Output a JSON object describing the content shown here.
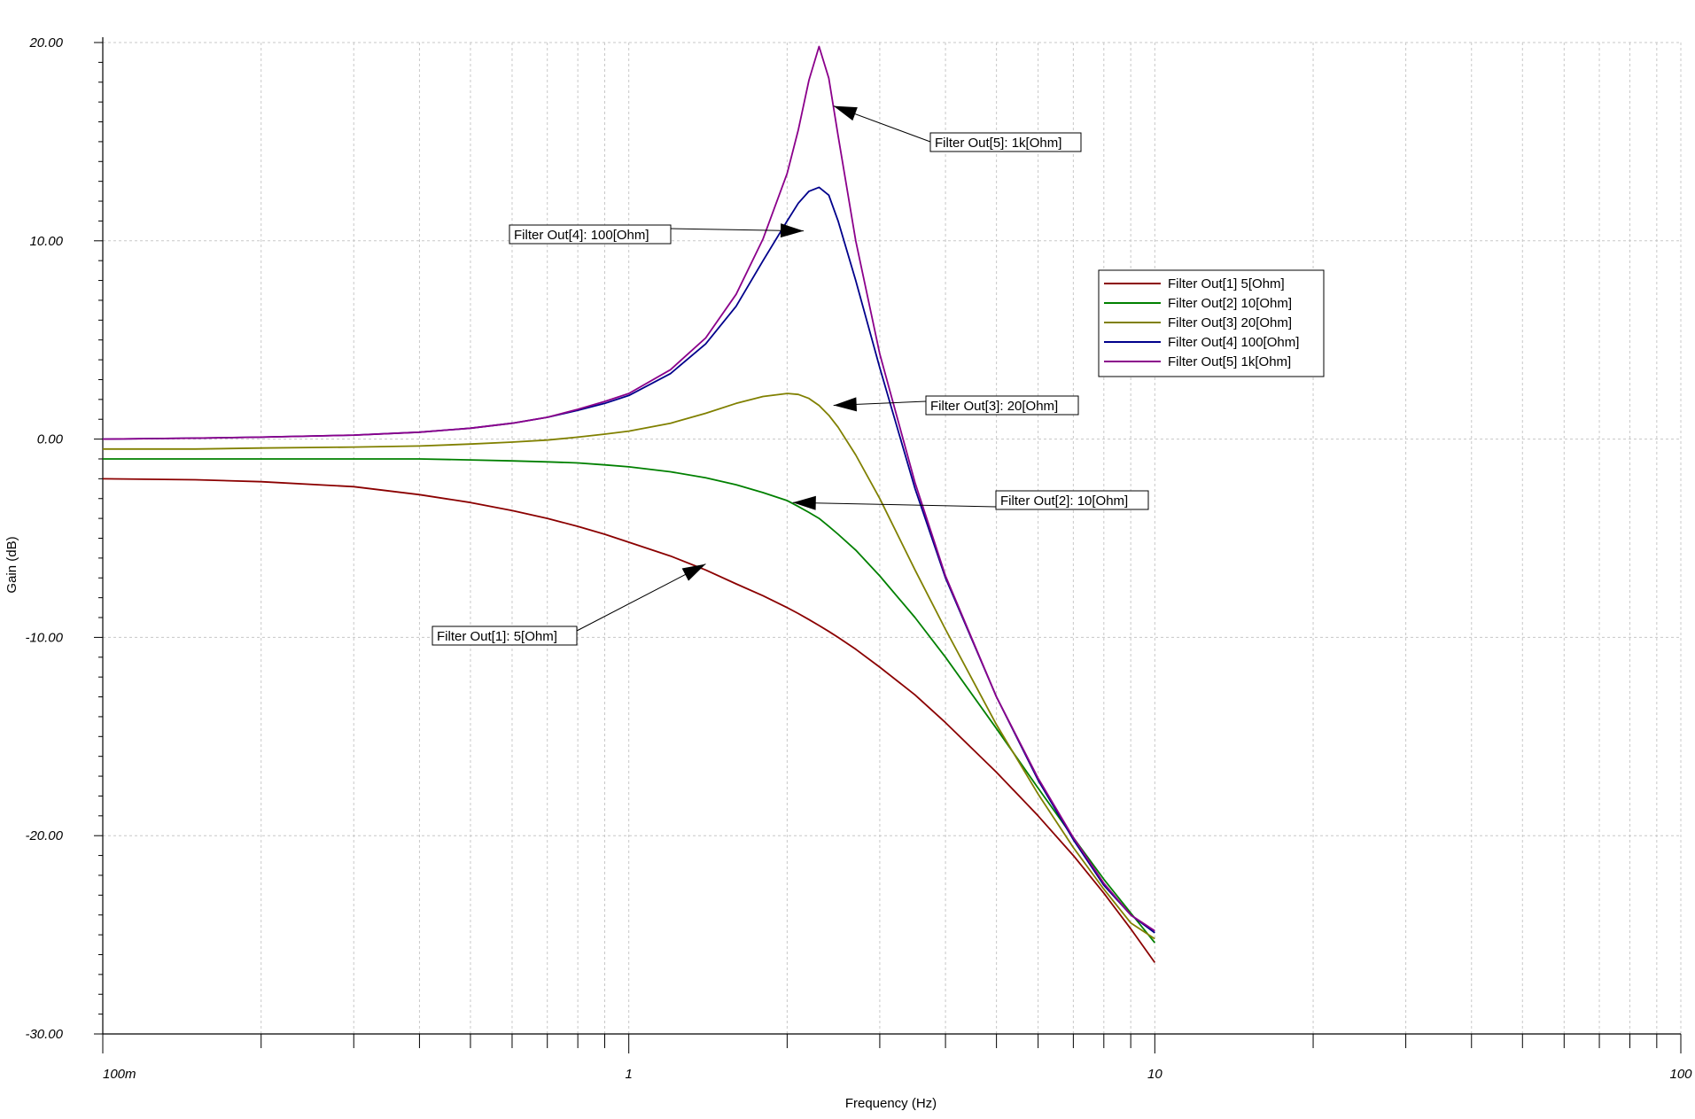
{
  "chart_data": {
    "type": "line",
    "title": "",
    "xlabel": "Frequency (Hz)",
    "ylabel": "Gain (dB)",
    "x_scale": "log",
    "xlim": [
      0.1,
      100
    ],
    "ylim": [
      -30,
      20
    ],
    "grid": true,
    "legend_position": "top-right",
    "x_ticks": [
      {
        "value": 0.1,
        "label": "100m"
      },
      {
        "value": 1,
        "label": "1"
      },
      {
        "value": 10,
        "label": "10"
      },
      {
        "value": 100,
        "label": "100"
      }
    ],
    "y_ticks": [
      {
        "value": 20,
        "label": "20.00"
      },
      {
        "value": 10,
        "label": "10.00"
      },
      {
        "value": 0,
        "label": "0.00"
      },
      {
        "value": -10,
        "label": "-10.00"
      },
      {
        "value": -20,
        "label": "-20.00"
      },
      {
        "value": -30,
        "label": "-30.00"
      }
    ],
    "x": [
      0.1,
      0.15,
      0.2,
      0.3,
      0.4,
      0.5,
      0.6,
      0.7,
      0.8,
      0.9,
      1.0,
      1.2,
      1.4,
      1.6,
      1.8,
      2.0,
      2.1,
      2.2,
      2.3,
      2.4,
      2.5,
      2.7,
      3.0,
      3.5,
      4.0,
      5.0,
      6.0,
      7.0,
      8.0,
      9.0,
      10.0
    ],
    "series": [
      {
        "name": "Filter Out[1]  5[Ohm]",
        "color": "#8b0000",
        "values": [
          -2.0,
          -2.05,
          -2.15,
          -2.4,
          -2.8,
          -3.2,
          -3.6,
          -4.0,
          -4.4,
          -4.8,
          -5.2,
          -5.9,
          -6.6,
          -7.3,
          -7.9,
          -8.5,
          -8.8,
          -9.1,
          -9.4,
          -9.7,
          -10.0,
          -10.6,
          -11.5,
          -12.9,
          -14.3,
          -16.8,
          -19.0,
          -21.0,
          -22.9,
          -24.7,
          -26.4
        ]
      },
      {
        "name": "Filter Out[2]  10[Ohm]",
        "color": "#008000",
        "values": [
          -1.0,
          -1.0,
          -1.0,
          -1.0,
          -1.0,
          -1.05,
          -1.1,
          -1.15,
          -1.2,
          -1.3,
          -1.4,
          -1.65,
          -1.95,
          -2.3,
          -2.7,
          -3.1,
          -3.4,
          -3.7,
          -4.0,
          -4.4,
          -4.8,
          -5.6,
          -6.9,
          -9.0,
          -11.0,
          -14.6,
          -17.6,
          -20.1,
          -22.2,
          -23.9,
          -25.4
        ]
      },
      {
        "name": "Filter Out[3]  20[Ohm]",
        "color": "#808000",
        "values": [
          -0.5,
          -0.5,
          -0.45,
          -0.4,
          -0.35,
          -0.25,
          -0.15,
          -0.05,
          0.1,
          0.25,
          0.4,
          0.8,
          1.3,
          1.8,
          2.15,
          2.3,
          2.25,
          2.05,
          1.7,
          1.2,
          0.6,
          -0.8,
          -3.0,
          -6.6,
          -9.6,
          -14.4,
          -17.9,
          -20.6,
          -22.7,
          -24.4,
          -25.2
        ]
      },
      {
        "name": "Filter Out[4]  100[Ohm]",
        "color": "#00008b",
        "values": [
          0.0,
          0.05,
          0.1,
          0.2,
          0.35,
          0.55,
          0.8,
          1.1,
          1.45,
          1.8,
          2.2,
          3.3,
          4.8,
          6.7,
          9.0,
          11.0,
          11.9,
          12.5,
          12.7,
          12.3,
          11.0,
          8.0,
          3.6,
          -2.5,
          -7.0,
          -13.0,
          -17.2,
          -20.2,
          -22.5,
          -24.0,
          -24.9
        ]
      },
      {
        "name": "Filter Out[5]  1k[Ohm]",
        "color": "#8b008b",
        "values": [
          0.0,
          0.05,
          0.1,
          0.2,
          0.35,
          0.55,
          0.8,
          1.1,
          1.5,
          1.9,
          2.3,
          3.5,
          5.1,
          7.3,
          10.1,
          13.4,
          15.6,
          18.1,
          19.8,
          18.2,
          15.3,
          10.0,
          4.3,
          -2.2,
          -6.9,
          -13.0,
          -17.1,
          -20.1,
          -22.4,
          -24.0,
          -24.8
        ]
      }
    ],
    "annotations": [
      {
        "label": "Filter Out[5]: 1k[Ohm]",
        "series": 4,
        "x": 2.45,
        "y": 16.8
      },
      {
        "label": "Filter Out[4]: 100[Ohm]",
        "series": 3,
        "x": 2.15,
        "y": 10.5
      },
      {
        "label": "Filter Out[3]: 20[Ohm]",
        "series": 2,
        "x": 2.45,
        "y": 1.7
      },
      {
        "label": "Filter Out[2]: 10[Ohm]",
        "series": 1,
        "x": 2.05,
        "y": -3.2
      },
      {
        "label": "Filter Out[1]: 5[Ohm]",
        "series": 0,
        "x": 1.4,
        "y": -6.3
      }
    ]
  }
}
